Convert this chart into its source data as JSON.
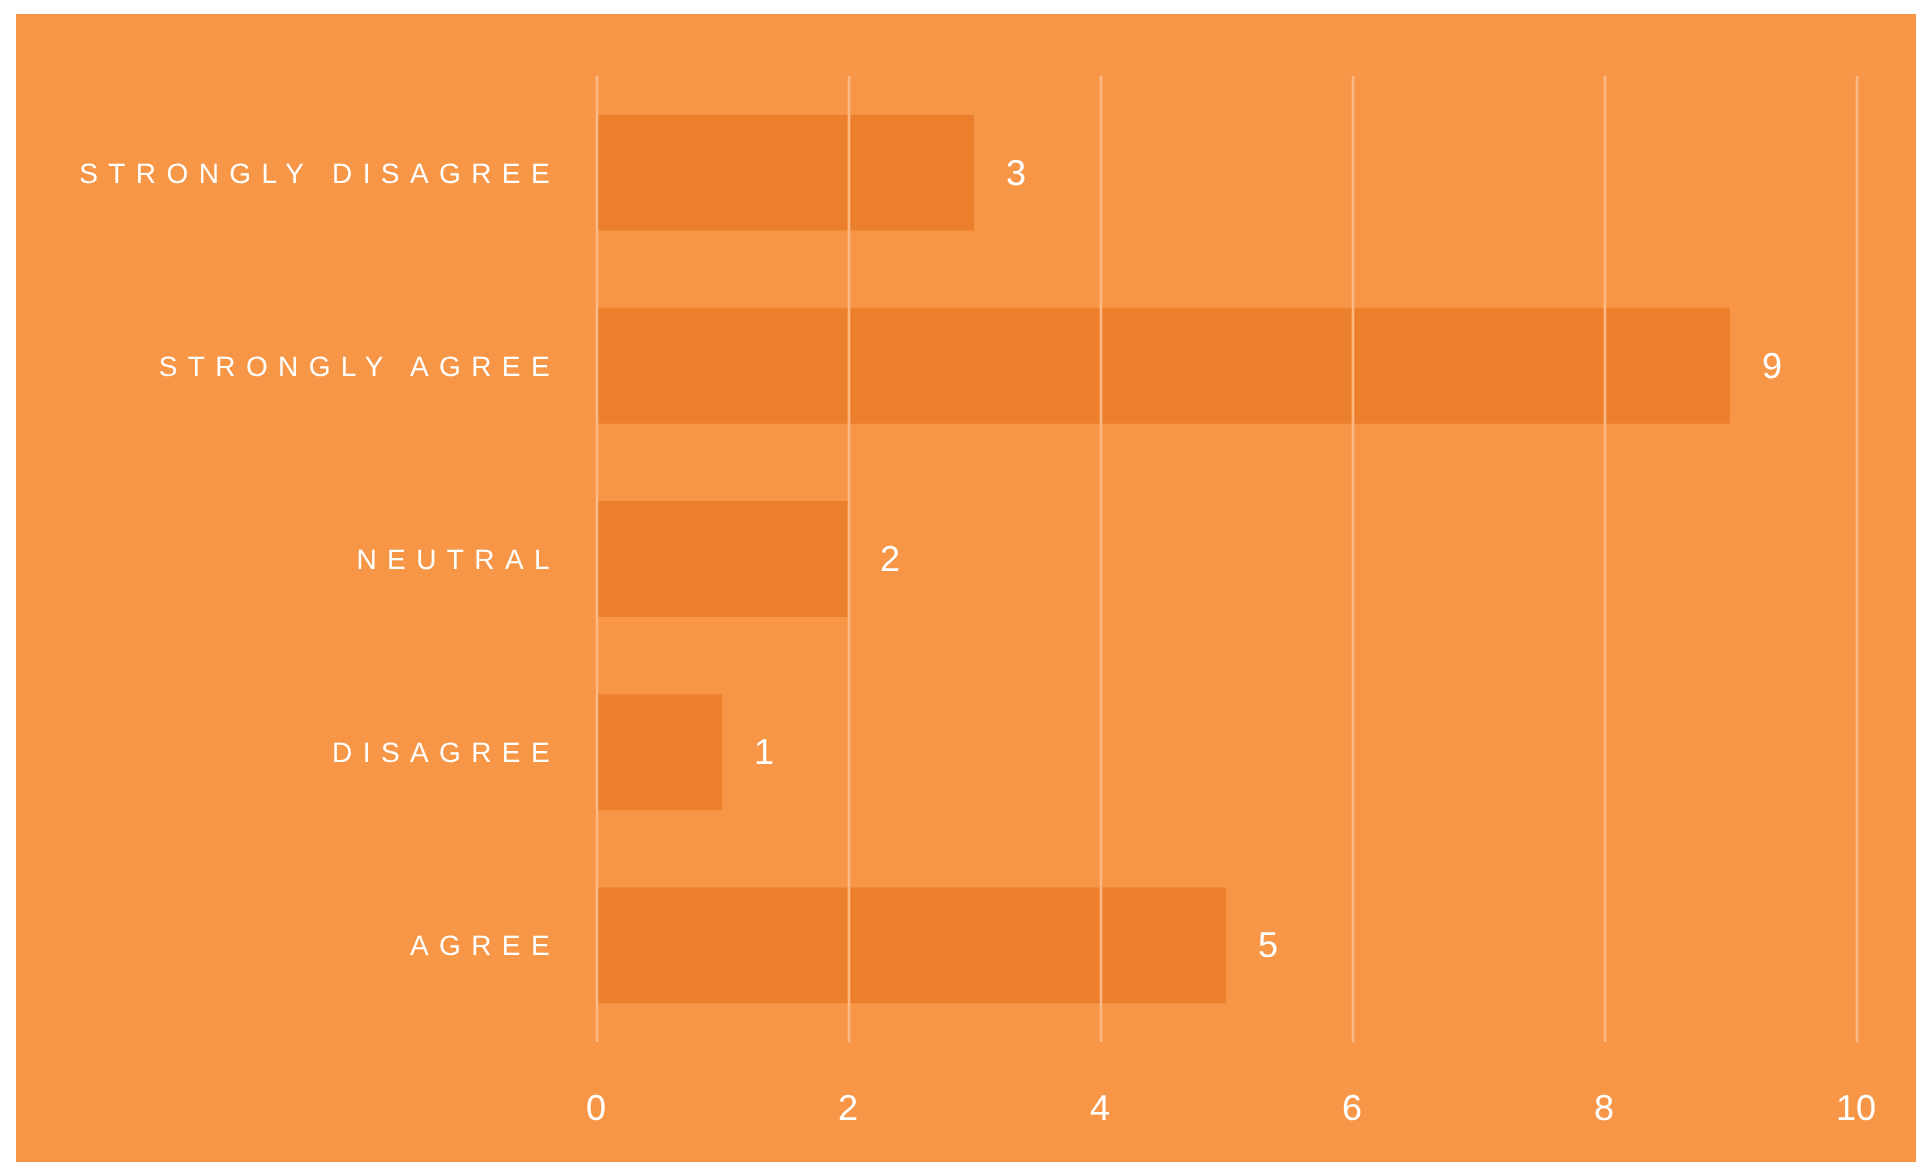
{
  "chart_data": {
    "type": "bar",
    "orientation": "horizontal",
    "categories": [
      "STRONGLY DISAGREE",
      "STRONGLY AGREE",
      "NEUTRAL",
      "DISAGREE",
      "AGREE"
    ],
    "values": [
      3,
      9,
      2,
      1,
      5
    ],
    "color": "#ec7f2c",
    "xlim": [
      0,
      10
    ],
    "xticks": [
      0,
      2,
      4,
      6,
      8,
      10
    ],
    "grid": "x",
    "data_labels": true
  }
}
